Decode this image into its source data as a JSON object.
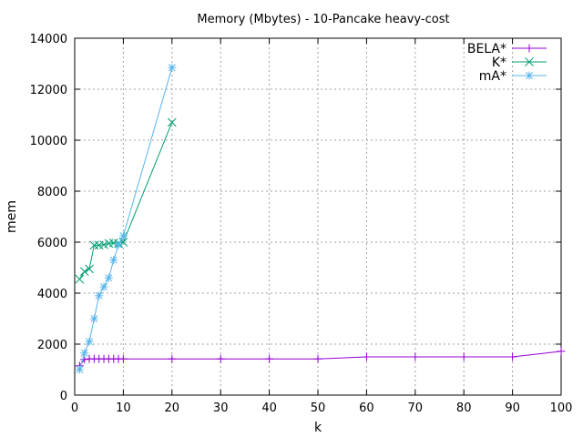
{
  "chart_data": {
    "type": "line",
    "title": "Memory (Mbytes) - 10-Pancake heavy-cost",
    "xlabel": "k",
    "ylabel": "mem",
    "xlim": [
      0,
      100
    ],
    "ylim": [
      0,
      14000
    ],
    "xticks": [
      0,
      10,
      20,
      30,
      40,
      50,
      60,
      70,
      80,
      90,
      100
    ],
    "yticks": [
      0,
      2000,
      4000,
      6000,
      8000,
      10000,
      12000,
      14000
    ],
    "grid": true,
    "legend_position": "top-right",
    "series": [
      {
        "name": "BELA*",
        "color": "#9400d3",
        "marker": "plus",
        "x": [
          1,
          2,
          3,
          4,
          5,
          6,
          7,
          8,
          9,
          10,
          20,
          30,
          40,
          50,
          60,
          70,
          80,
          90,
          100
        ],
        "y": [
          1150,
          1400,
          1420,
          1420,
          1420,
          1420,
          1420,
          1420,
          1420,
          1420,
          1420,
          1420,
          1420,
          1420,
          1500,
          1500,
          1500,
          1500,
          1720
        ]
      },
      {
        "name": "K*",
        "color": "#009e73",
        "marker": "cross",
        "x": [
          1,
          2,
          3,
          4,
          5,
          6,
          7,
          8,
          9,
          10,
          20
        ],
        "y": [
          4550,
          4850,
          4950,
          5880,
          5880,
          5900,
          5950,
          5970,
          5950,
          6000,
          10700
        ]
      },
      {
        "name": "mA*",
        "color": "#56b4e9",
        "marker": "star",
        "x": [
          1,
          2,
          3,
          4,
          5,
          6,
          7,
          8,
          9,
          10,
          20
        ],
        "y": [
          1000,
          1650,
          2100,
          3000,
          3900,
          4250,
          4600,
          5300,
          5900,
          6250,
          12850
        ]
      }
    ]
  }
}
